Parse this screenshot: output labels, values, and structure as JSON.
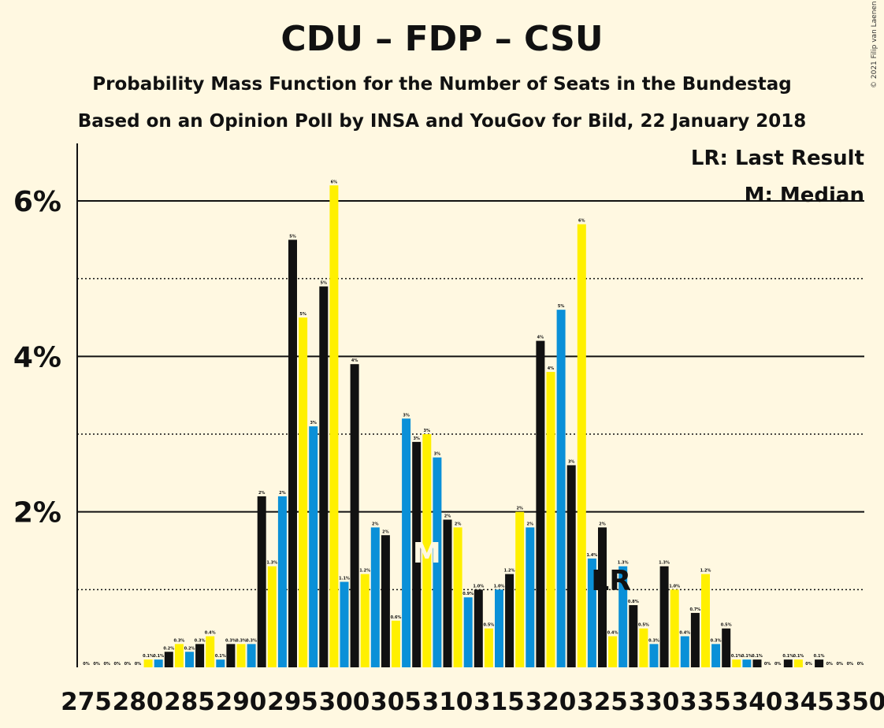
{
  "title": "CDU – FDP – CSU",
  "subtitle1": "Probability Mass Function for the Number of Seats in the Bundestag",
  "subtitle2": "Based on an Opinion Poll by INSA and YouGov for Bild, 22 January 2018",
  "copyright": "© 2021 Filip van Laenen",
  "legend": {
    "lr": "LR: Last Result",
    "m": "M: Median"
  },
  "markers": {
    "median_label": "M",
    "median_seat": 308,
    "lr_label": "LR",
    "lr_seat": 326
  },
  "colors": {
    "blue": "#0a90d8",
    "yellow": "#fff000",
    "black": "#111111",
    "background": "#fff8e1"
  },
  "chart_data": {
    "type": "bar",
    "x": [
      275,
      276,
      277,
      278,
      279,
      280,
      281,
      282,
      283,
      284,
      285,
      286,
      287,
      288,
      289,
      290,
      291,
      292,
      293,
      294,
      295,
      296,
      297,
      298,
      299,
      300,
      301,
      302,
      303,
      304,
      305,
      306,
      307,
      308,
      309,
      310,
      311,
      312,
      313,
      314,
      315,
      316,
      317,
      318,
      319,
      320,
      321,
      322,
      323,
      324,
      325,
      326,
      327,
      328,
      329,
      330,
      331,
      332,
      333,
      334,
      335,
      336,
      337,
      338,
      339,
      340,
      341,
      342,
      343,
      344,
      345,
      346,
      347,
      348,
      349,
      350
    ],
    "values": [
      0.0,
      0.0,
      0.0,
      0.0,
      0.0,
      0.0,
      0.1,
      0.1,
      0.2,
      0.3,
      0.2,
      0.3,
      0.4,
      0.1,
      0.3,
      0.3,
      0.3,
      2.2,
      1.3,
      2.2,
      5.5,
      4.5,
      3.1,
      4.9,
      6.2,
      1.1,
      3.9,
      1.2,
      1.8,
      1.7,
      0.6,
      3.2,
      2.9,
      3.0,
      2.7,
      1.9,
      1.8,
      0.9,
      1.0,
      0.5,
      1.0,
      1.2,
      2.0,
      1.8,
      4.2,
      3.8,
      4.6,
      2.6,
      5.7,
      1.4,
      1.8,
      0.4,
      1.3,
      0.8,
      0.5,
      0.3,
      1.3,
      1.0,
      0.4,
      0.7,
      1.2,
      0.3,
      0.5,
      0.1,
      0.1,
      0.1,
      0.0,
      0.0,
      0.1,
      0.1,
      0.0,
      0.1,
      0.0,
      0.0,
      0.0,
      0.0
    ],
    "value_labels": [
      "0%",
      "0%",
      "0%",
      "0%",
      "0%",
      "0%",
      "0.1%",
      "0.1%",
      "0.2%",
      "0.3%",
      "0.2%",
      "0.3%",
      "0.4%",
      "0.1%",
      "0.3%",
      "0.3%",
      "0.3%",
      "2%",
      "1.3%",
      "2%",
      "5%",
      "5%",
      "3%",
      "5%",
      "6%",
      "1.1%",
      "4%",
      "1.2%",
      "2%",
      "2%",
      "0.6%",
      "3%",
      "3%",
      "3%",
      "3%",
      "2%",
      "2%",
      "0.9%",
      "1.0%",
      "0.5%",
      "1.0%",
      "1.2%",
      "2%",
      "2%",
      "4%",
      "4%",
      "5%",
      "3%",
      "6%",
      "1.4%",
      "2%",
      "0.4%",
      "1.3%",
      "0.8%",
      "0.5%",
      "0.3%",
      "1.3%",
      "1.0%",
      "0.4%",
      "0.7%",
      "1.2%",
      "0.3%",
      "0.5%",
      "0.1%",
      "0.1%",
      "0.1%",
      "0%",
      "0%",
      "0.1%",
      "0.1%",
      "0%",
      "0.1%",
      "0%",
      "0%",
      "0%",
      "0%"
    ],
    "bar_color_cycle": [
      "yellow",
      "blue",
      "black"
    ],
    "xticks": [
      "275",
      "280",
      "285",
      "290",
      "295",
      "300",
      "305",
      "310",
      "315",
      "320",
      "325",
      "330",
      "335",
      "340",
      "345",
      "350"
    ],
    "yticks": [
      "2%",
      "4%",
      "6%"
    ],
    "ylim": [
      0,
      6.75
    ],
    "grid": {
      "solid_at": [
        2,
        4,
        6
      ],
      "dotted_at": [
        1,
        3,
        5
      ]
    },
    "legend_position": "top-right"
  }
}
